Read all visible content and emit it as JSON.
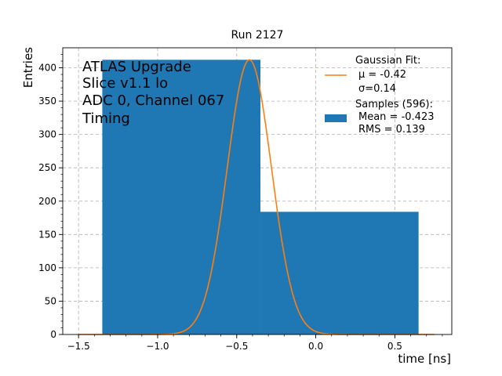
{
  "chart_data": {
    "type": "bar",
    "title": "Run 2127",
    "xlabel": "time [ns]",
    "ylabel": "Entries",
    "xlim": [
      -1.6,
      0.86
    ],
    "ylim": [
      0,
      430
    ],
    "grid": true,
    "x_ticks": [
      -1.5,
      -1.0,
      -0.5,
      0.0,
      0.5
    ],
    "x_tick_labels": [
      "−1.5",
      "−1.0",
      "−0.5",
      "0.0",
      "0.5"
    ],
    "y_ticks": [
      0,
      50,
      100,
      150,
      200,
      250,
      300,
      350,
      400
    ],
    "y_tick_labels": [
      "0",
      "50",
      "100",
      "150",
      "200",
      "250",
      "300",
      "350",
      "400"
    ],
    "annotation": [
      "ATLAS Upgrade",
      "Slice v1.1 lo",
      "ADC 0, Channel 067",
      "Timing"
    ],
    "histogram": {
      "bins": [
        {
          "x0": -1.35,
          "x1": -0.35,
          "value": 412
        },
        {
          "x0": -0.35,
          "x1": 0.65,
          "value": 184
        }
      ],
      "color": "#1f77b4"
    },
    "fit": {
      "type": "gaussian",
      "mu": -0.42,
      "sigma": 0.14,
      "amplitude": 412,
      "x_range": [
        -1.5,
        0.75
      ],
      "color": "#ff7f0e"
    },
    "legend": {
      "placement": "top-right",
      "fit_label": [
        "Gaussian Fit:",
        "μ = -0.42",
        "σ=0.14"
      ],
      "hist_label": [
        "Samples (596):",
        "Mean = -0.423",
        "RMS = 0.139"
      ]
    }
  }
}
